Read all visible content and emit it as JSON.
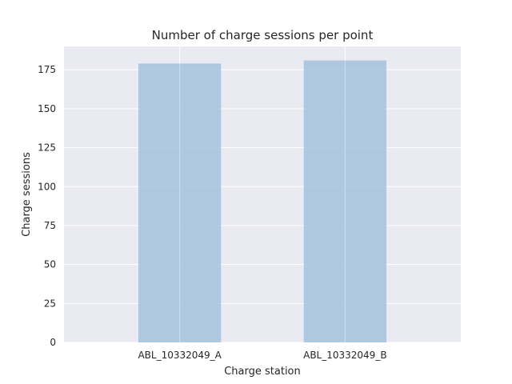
{
  "chart_data": {
    "type": "bar",
    "title": "Number of charge sessions per point",
    "xlabel": "Charge station",
    "ylabel": "Charge sessions",
    "categories": [
      "ABL_10332049_A",
      "ABL_10332049_B"
    ],
    "values": [
      179,
      181
    ],
    "ylim": [
      0,
      190
    ],
    "yticks": [
      0,
      25,
      50,
      75,
      100,
      125,
      150,
      175
    ],
    "grid": true,
    "legend": "none",
    "colors": {
      "plot_background": "#eaeaf2",
      "grid": "#ffffff",
      "bar": "#a4c2de",
      "text": "#262626"
    }
  }
}
